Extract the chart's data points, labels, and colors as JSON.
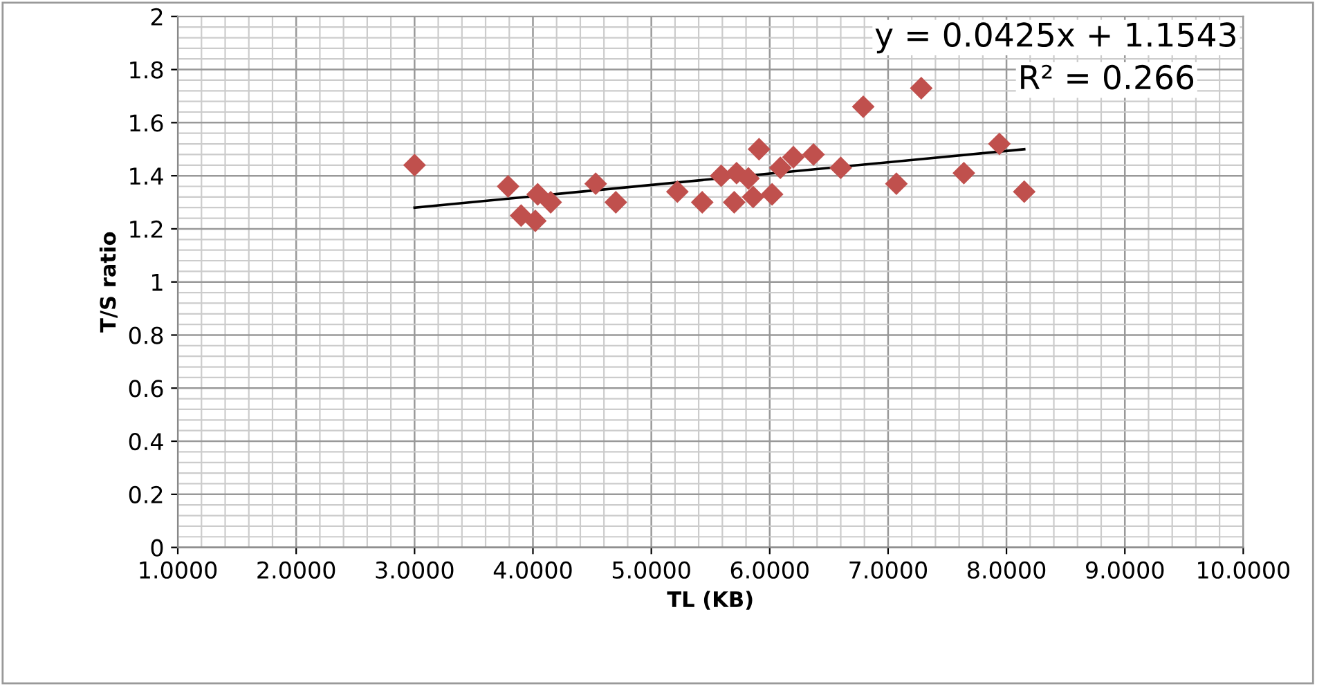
{
  "chart_data": {
    "type": "scatter",
    "xlabel": "TL (KB)",
    "ylabel": "T/S ratio",
    "xlim": [
      1,
      10
    ],
    "ylim": [
      0,
      2
    ],
    "xticks": [
      {
        "value": 1,
        "label": "1.0000"
      },
      {
        "value": 2,
        "label": "2.0000"
      },
      {
        "value": 3,
        "label": "3.0000"
      },
      {
        "value": 4,
        "label": "4.0000"
      },
      {
        "value": 5,
        "label": "5.0000"
      },
      {
        "value": 6,
        "label": "6.0000"
      },
      {
        "value": 7,
        "label": "7.0000"
      },
      {
        "value": 8,
        "label": "8.0000"
      },
      {
        "value": 9,
        "label": "9.0000"
      },
      {
        "value": 10,
        "label": "10.0000"
      }
    ],
    "yticks": [
      0,
      0.2,
      0.4,
      0.6,
      0.8,
      1,
      1.2,
      1.4,
      1.6,
      1.8,
      2
    ],
    "grid": true,
    "legend": false,
    "series": [
      {
        "color": "#c0504d",
        "marker": "diamond",
        "x": [
          3.0,
          3.79,
          3.9,
          4.02,
          4.04,
          4.15,
          4.53,
          4.7,
          5.22,
          5.43,
          5.59,
          5.72,
          5.7,
          5.82,
          5.86,
          5.91,
          6.02,
          6.09,
          6.2,
          6.37,
          6.6,
          6.79,
          7.28,
          7.07,
          7.64,
          7.94,
          8.15
        ],
        "values": [
          1.44,
          1.36,
          1.25,
          1.23,
          1.33,
          1.3,
          1.37,
          1.3,
          1.34,
          1.3,
          1.4,
          1.41,
          1.3,
          1.39,
          1.32,
          1.5,
          1.33,
          1.43,
          1.47,
          1.48,
          1.43,
          1.66,
          1.73,
          1.37,
          1.41,
          1.52,
          1.34
        ]
      },
      {
        "type": "line",
        "color": "#000000",
        "marker": "none",
        "line_style": "solid",
        "x": [
          3.0,
          8.15
        ],
        "values": [
          1.28,
          1.5
        ]
      }
    ],
    "annotations": [
      "y = 0.0425x + 1.1543",
      "R² = 0.266"
    ]
  }
}
